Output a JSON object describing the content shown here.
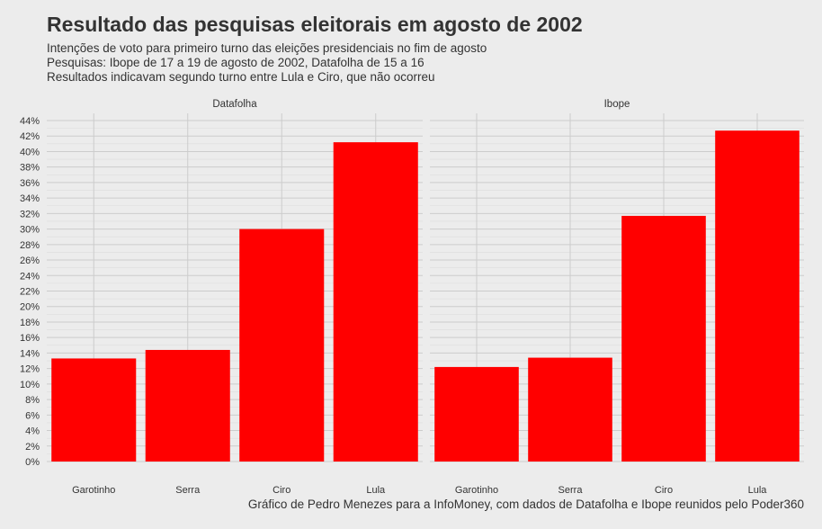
{
  "title": "Resultado das pesquisas eleitorais em agosto de 2002",
  "subtitle_lines": [
    "Intenções de voto para primeiro turno das eleições presidenciais no fim de agosto",
    "Pesquisas: Ibope de 17 a 19 de agosto de 2002, Datafolha de 15 a 16",
    "Resultados indicavam segundo turno entre Lula e Ciro, que não ocorreu"
  ],
  "caption": "Gráfico de Pedro Menezes para a InfoMoney, com dados de Datafolha e Ibope reunidos pelo Poder360",
  "colors": {
    "bar": "#ff0000",
    "background": "#ececec",
    "grid_major": "#cccccc",
    "grid_minor": "#dddddd",
    "text": "#333333"
  },
  "chart_data": {
    "type": "bar",
    "categories": [
      "Garotinho",
      "Serra",
      "Ciro",
      "Lula"
    ],
    "series": [
      {
        "name": "Datafolha",
        "values": [
          13.3,
          14.4,
          30.0,
          41.2
        ]
      },
      {
        "name": "Ibope",
        "values": [
          12.2,
          13.4,
          31.7,
          42.7
        ]
      }
    ],
    "ylim": [
      0,
      44
    ],
    "y_ticks": [
      0,
      2,
      4,
      6,
      8,
      10,
      12,
      14,
      16,
      18,
      20,
      22,
      24,
      26,
      28,
      30,
      32,
      34,
      36,
      38,
      40,
      42,
      44
    ],
    "y_tick_labels": [
      "0%",
      "2%",
      "4%",
      "6%",
      "8%",
      "10%",
      "12%",
      "14%",
      "16%",
      "18%",
      "20%",
      "22%",
      "24%",
      "26%",
      "28%",
      "30%",
      "32%",
      "34%",
      "36%",
      "38%",
      "40%",
      "42%",
      "44%"
    ],
    "xlabel": "",
    "ylabel": "",
    "grid": true,
    "facets": [
      "Datafolha",
      "Ibope"
    ]
  }
}
